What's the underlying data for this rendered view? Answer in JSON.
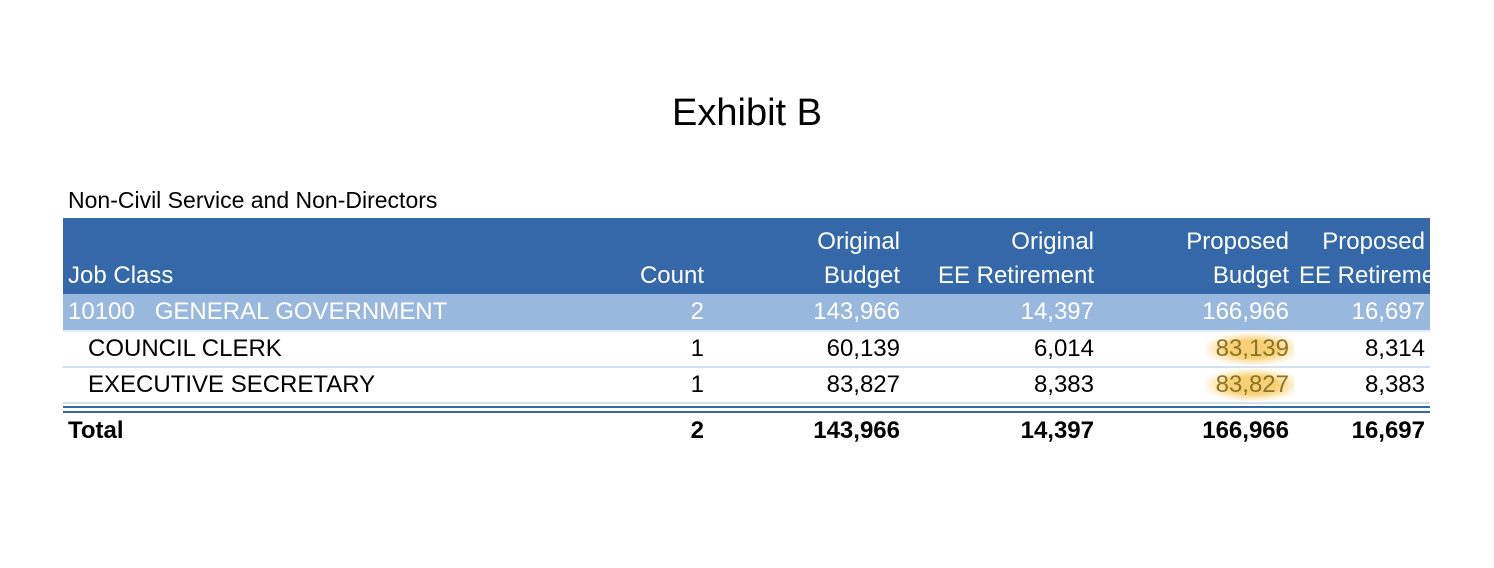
{
  "title": "Exhibit B",
  "subtitle": "Non-Civil Service and Non-Directors",
  "columns": {
    "job_class": "Job Class",
    "count": "Count",
    "orig_budget_line1": "Original",
    "orig_budget_line2": "Budget",
    "orig_ret_line1": "Original",
    "orig_ret_line2": "EE Retirement",
    "prop_budget_line1": "Proposed",
    "prop_budget_line2": "Budget",
    "prop_ret_line1": "Proposed",
    "prop_ret_line2": "EE Retirement"
  },
  "group": {
    "label": "10100   GENERAL GOVERNMENT",
    "count": "2",
    "orig_budget": "143,966",
    "orig_ret": "14,397",
    "prop_budget": "166,966",
    "prop_ret": "16,697"
  },
  "rows": [
    {
      "job_class": "COUNCIL CLERK",
      "count": "1",
      "orig_budget": "60,139",
      "orig_ret": "6,014",
      "prop_budget": "83,139",
      "prop_ret": "8,314"
    },
    {
      "job_class": "EXECUTIVE SECRETARY",
      "count": "1",
      "orig_budget": "83,827",
      "orig_ret": "8,383",
      "prop_budget": "83,827",
      "prop_ret": "8,383"
    }
  ],
  "total": {
    "label": "Total",
    "count": "2",
    "orig_budget": "143,966",
    "orig_ret": "14,397",
    "prop_budget": "166,966",
    "prop_ret": "16,697"
  },
  "colors": {
    "header_bg": "#3468a8",
    "group_bg": "#98b8de",
    "highlight": "#f7cd6e"
  }
}
